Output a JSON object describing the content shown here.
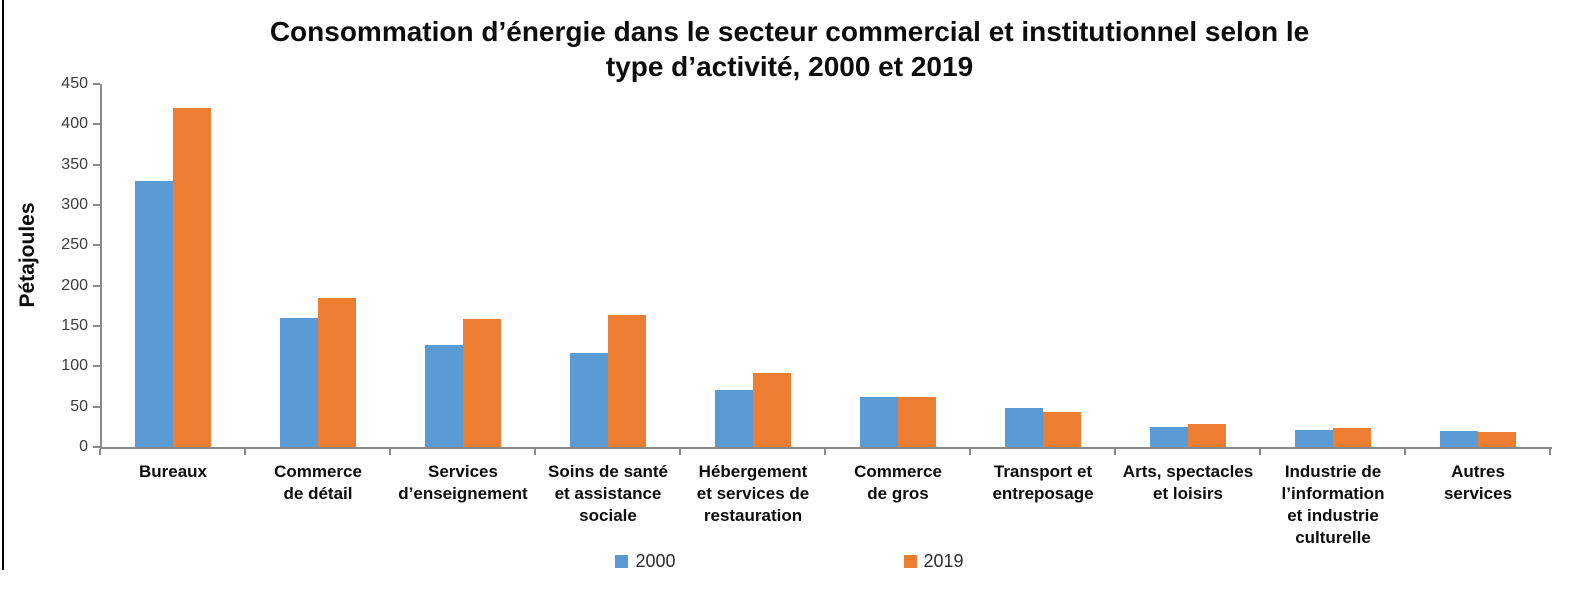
{
  "chart_data": {
    "type": "bar",
    "title": "Consommation d’énergie dans le secteur commercial et institutionnel selon le type d’activité, 2000 et 2019",
    "title_lines": [
      "Consommation d’énergie dans le secteur commercial et institutionnel selon le",
      "type d’activité, 2000 et 2019"
    ],
    "xlabel": "",
    "ylabel": "Pétajoules",
    "ylim": [
      0,
      450
    ],
    "ytick_step": 50,
    "yticks": [
      0,
      50,
      100,
      150,
      200,
      250,
      300,
      350,
      400,
      450
    ],
    "grid": false,
    "legend_position": "bottom-center",
    "axis_color": "#898989",
    "categories": [
      {
        "label": "Bureaux",
        "lines": [
          "Bureaux"
        ]
      },
      {
        "label": "Commerce de détail",
        "lines": [
          "Commerce",
          "de détail"
        ]
      },
      {
        "label": "Services d’enseignement",
        "lines": [
          "Services",
          "d’enseignement"
        ]
      },
      {
        "label": "Soins de santé et assistance sociale",
        "lines": [
          "Soins de santé",
          "et assistance",
          "sociale"
        ]
      },
      {
        "label": "Hébergement et services de restauration",
        "lines": [
          "Hébergement",
          "et services de",
          "restauration"
        ]
      },
      {
        "label": "Commerce de gros",
        "lines": [
          "Commerce",
          "de gros"
        ]
      },
      {
        "label": "Transport et entreposage",
        "lines": [
          "Transport et",
          "entreposage"
        ]
      },
      {
        "label": "Arts, spectacles et loisirs",
        "lines": [
          "Arts, spectacles",
          "et loisirs"
        ]
      },
      {
        "label": "Industrie de l’information et industrie culturelle",
        "lines": [
          "Industrie de",
          "l’information",
          "et industrie",
          "culturelle"
        ]
      },
      {
        "label": "Autres services",
        "lines": [
          "Autres",
          "services"
        ]
      }
    ],
    "series": [
      {
        "name": "2000",
        "color": "#5B9BD5",
        "values": [
          330,
          160,
          127,
          117,
          71,
          62,
          48,
          25,
          21,
          20
        ]
      },
      {
        "name": "2019",
        "color": "#ED7D31",
        "values": [
          420,
          185,
          159,
          164,
          92,
          62,
          44,
          29,
          24,
          18
        ]
      }
    ]
  }
}
